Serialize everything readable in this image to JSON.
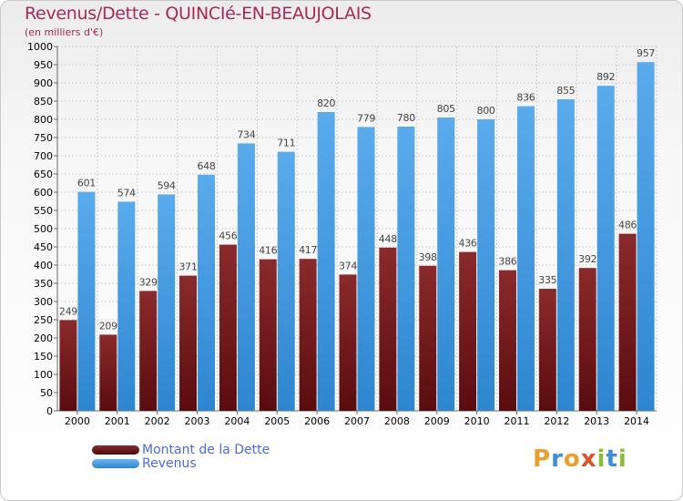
{
  "header": {
    "title": "Revenus/Dette - QUINCIé-EN-BEAUJOLAIS",
    "subtitle": "(en milliers d'€)"
  },
  "chart_data": {
    "type": "bar",
    "title": "Revenus/Dette - QUINCIé-EN-BEAUJOLAIS",
    "ylabel": "(en milliers d'€)",
    "xlabel": "",
    "ylim": [
      0,
      1000
    ],
    "ytick_step": 50,
    "grid": true,
    "legend_position": "bottom-left",
    "categories": [
      "2000",
      "2001",
      "2002",
      "2003",
      "2004",
      "2005",
      "2006",
      "2007",
      "2008",
      "2009",
      "2010",
      "2011",
      "2012",
      "2013",
      "2014"
    ],
    "series": [
      {
        "name": "Montant de la Dette",
        "color": "#7a1f22",
        "values": [
          249,
          209,
          329,
          371,
          456,
          416,
          417,
          374,
          448,
          398,
          436,
          386,
          335,
          392,
          486
        ]
      },
      {
        "name": "Revenus",
        "color": "#3f9be4",
        "values": [
          601,
          574,
          594,
          648,
          734,
          711,
          820,
          779,
          780,
          805,
          800,
          836,
          855,
          892,
          957
        ]
      }
    ]
  },
  "legend": {
    "items": [
      "Montant de la Dette",
      "Revenus"
    ]
  },
  "logo": {
    "text": "Proxiti"
  },
  "colors": {
    "title": "#a8285a",
    "legend_text": "#4d6bdc",
    "debt": "#7a1f22",
    "revenue": "#3f9be4"
  }
}
